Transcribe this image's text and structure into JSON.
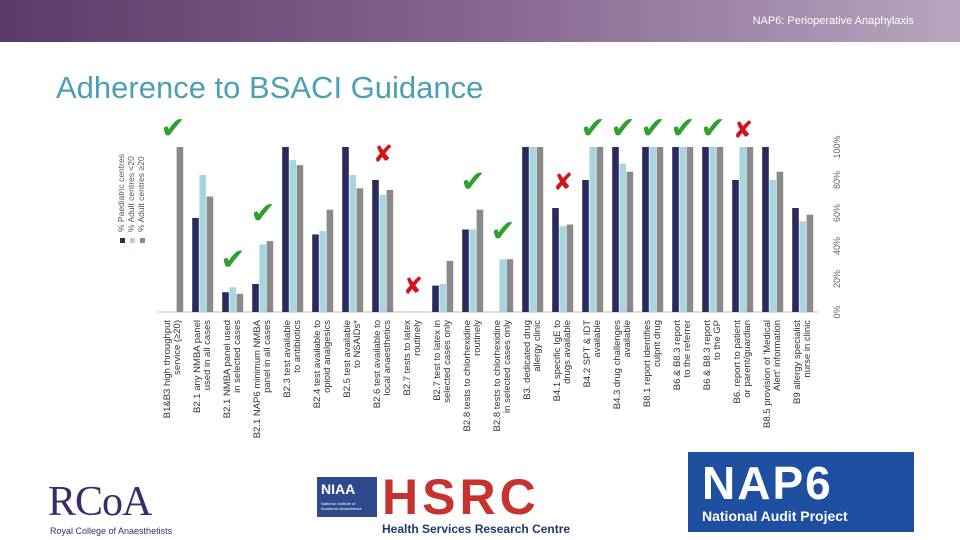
{
  "header": {
    "title": "NAP6: Perioperative Anaphylaxis"
  },
  "slide_title": "Adherence to BSACI Guidance",
  "chart_data": {
    "type": "bar",
    "title": "",
    "xlabel": "",
    "ylabel": "",
    "ylim": [
      0,
      100
    ],
    "y_ticks": [
      "0%",
      "20%",
      "40%",
      "60%",
      "80%",
      "100%"
    ],
    "legend_position": "left-vertical",
    "categories": [
      "B1&B3 high throughput service (≥20)",
      "B2.1 any NMBA panel used in all cases",
      "B2.1 NMBA panel used in selected cases",
      "B2.1 NAP6 minimum NMBA panel in all cases",
      "B2.3 test available to antibiotics",
      "B2.4 test available to opioid analgesics",
      "B2.5 test available to NSAIDs*",
      "B2.6 test available to local anaesthetics",
      "B2.7 tests to latex routinely",
      "B2.7 test to latex in selected cases only",
      "B2.8 tests to chlorhexidine routinely",
      "B2.8 tests to chlorhexidine in selected cases only",
      "B3. dedicated drug allergy clinic",
      "B4.1 specific IgE to drugs available",
      "B4.2 SPT & IDT available",
      "B4.3 drug challenges available",
      "B8.1 report identifies culprit drug",
      "B6 & B8.3 report to the referrer",
      "B6 & B8.3 report to the GP",
      "B6. report to patient or parent/guardian",
      "B8.5 provision of 'Medical Alert' information",
      "B9 allergy specialist nurse in clinic"
    ],
    "series": [
      {
        "name": "% Paediatric centres",
        "color": "#2a2a5c",
        "values": [
          null,
          57,
          12,
          17,
          100,
          47,
          100,
          80,
          0,
          16,
          50,
          0,
          100,
          63,
          80,
          100,
          100,
          100,
          100,
          80,
          100,
          63
        ]
      },
      {
        "name": "% Adult centres <20",
        "color": "#a8d5e0",
        "values": [
          null,
          83,
          15,
          41,
          92,
          49,
          83,
          71,
          0,
          17,
          50,
          32,
          100,
          52,
          100,
          90,
          100,
          100,
          100,
          100,
          80,
          55
        ]
      },
      {
        "name": "% Adult centres ≥20",
        "color": "#8a8a8a",
        "values": [
          100,
          70,
          11,
          43,
          89,
          62,
          75,
          74,
          0,
          31,
          62,
          32,
          100,
          53,
          100,
          85,
          100,
          100,
          100,
          100,
          85,
          59
        ]
      }
    ],
    "annotations": [
      {
        "category": "B1&B3 high throughput service (≥20)",
        "mark": "✔",
        "status": "met"
      },
      {
        "category": "B2.1 NMBA panel used in selected cases",
        "mark": "✔",
        "status": "met"
      },
      {
        "category": "B2.1 NAP6 minimum NMBA panel in all cases",
        "mark": "✔",
        "status": "met"
      },
      {
        "category": "B2.6 test available to local anaesthetics",
        "mark": "✘",
        "status": "not-met"
      },
      {
        "category": "B2.7 tests to latex routinely",
        "mark": "✘",
        "status": "not-met"
      },
      {
        "category": "B2.8 tests to chlorhexidine routinely",
        "mark": "✔",
        "status": "met"
      },
      {
        "category": "B2.8 tests to chlorhexidine in selected cases only",
        "mark": "✔",
        "status": "met"
      },
      {
        "category": "B4.1 specific IgE to drugs available",
        "mark": "✘",
        "status": "not-met"
      },
      {
        "category": "B4.2 SPT & IDT available",
        "mark": "✔",
        "status": "met"
      },
      {
        "category": "B4.3 drug challenges available",
        "mark": "✔",
        "status": "met"
      },
      {
        "category": "B8.1 report identifies culprit drug",
        "mark": "✔",
        "status": "met"
      },
      {
        "category": "B6 & B8.3 report to the referrer",
        "mark": "✔",
        "status": "met"
      },
      {
        "category": "B6 & B8.3 report to the GP",
        "mark": "✔",
        "status": "met"
      },
      {
        "category": "B6. report to patient or parent/guardian",
        "mark": "✘",
        "status": "not-met"
      }
    ],
    "check_color": "#2fa02f",
    "cross_color": "#d4141c"
  },
  "logos": {
    "rcoa": {
      "letters": "RCoA",
      "subtitle": "Royal College of Anaesthetists"
    },
    "niaa": {
      "letters": "NIAA",
      "subtitle": "National Institute of Academic Anaesthesia"
    },
    "hsrc": {
      "letters": "HSRC",
      "subtitle": "Health Services Research Centre"
    },
    "nap6": {
      "letters": "NAP6",
      "subtitle": "National Audit Project"
    }
  }
}
